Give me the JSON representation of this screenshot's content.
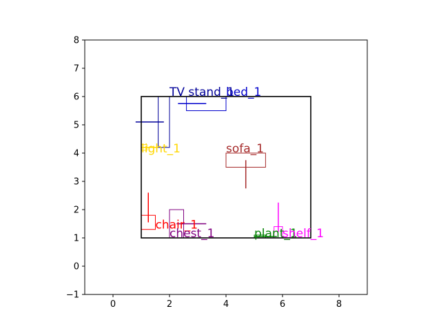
{
  "chart_data": {
    "type": "scatter",
    "title": "",
    "xlabel": "",
    "ylabel": "",
    "xlim": [
      -1,
      9
    ],
    "ylim": [
      -1,
      8
    ],
    "xticks": [
      0,
      2,
      4,
      6,
      8
    ],
    "yticks": [
      -1,
      0,
      1,
      2,
      3,
      4,
      5,
      6,
      7,
      8
    ],
    "grid": false,
    "room": {
      "x": [
        1,
        7
      ],
      "y": [
        1,
        6
      ],
      "color": "#000000"
    },
    "objects": [
      {
        "label": "bed_1",
        "color": "#0000cc",
        "rect": {
          "x0": 2.6,
          "y0": 5.5,
          "x1": 4.0,
          "y1": 6.0
        },
        "segment": {
          "x0": 2.3,
          "y0": 5.75,
          "x1": 3.3,
          "y1": 5.75
        },
        "label_pos": [
          4.0,
          6.0
        ]
      },
      {
        "label": "TV stand_1",
        "color": "#000099",
        "rect": {
          "x0": 1.6,
          "y0": 4.2,
          "x1": 2.0,
          "y1": 6.0
        },
        "segment": {
          "x0": 0.8,
          "y0": 5.1,
          "x1": 1.8,
          "y1": 5.1
        },
        "label_pos": [
          2.0,
          6.0
        ]
      },
      {
        "label": "light_1",
        "color": "#ffd700",
        "rect": {
          "x0": 1.0,
          "y0": 4.1,
          "x1": 1.2,
          "y1": 4.3
        },
        "segment": {
          "x0": 1.0,
          "y0": 4.2,
          "x1": 1.6,
          "y1": 4.2
        },
        "label_pos": [
          1.0,
          4.0
        ]
      },
      {
        "label": "sofa_1",
        "color": "#a52a2a",
        "rect": {
          "x0": 4.0,
          "y0": 3.5,
          "x1": 5.4,
          "y1": 4.0
        },
        "segment": {
          "x0": 4.7,
          "y0": 2.75,
          "x1": 4.7,
          "y1": 3.75
        },
        "label_pos": [
          4.0,
          4.0
        ]
      },
      {
        "label": "chair_1",
        "color": "#ff0000",
        "rect": {
          "x0": 1.0,
          "y0": 1.3,
          "x1": 1.5,
          "y1": 1.8
        },
        "segment": {
          "x0": 1.25,
          "y0": 1.55,
          "x1": 1.25,
          "y1": 2.6
        },
        "label_pos": [
          1.5,
          1.3
        ]
      },
      {
        "label": "chest_1",
        "color": "#800080",
        "rect": {
          "x0": 2.0,
          "y0": 1.0,
          "x1": 2.5,
          "y1": 2.0
        },
        "segment": {
          "x0": 2.25,
          "y0": 1.5,
          "x1": 3.3,
          "y1": 1.5
        },
        "label_pos": [
          2.0,
          1.0
        ]
      },
      {
        "label": "plant_1",
        "color": "#008000",
        "rect": {
          "x0": 5.0,
          "y0": 1.0,
          "x1": 5.4,
          "y1": 1.1
        },
        "segment": {
          "x0": 5.0,
          "y0": 1.05,
          "x1": 5.8,
          "y1": 1.05
        },
        "label_pos": [
          5.0,
          1.0
        ]
      },
      {
        "label": "shelf_1",
        "color": "#ff00ff",
        "rect": {
          "x0": 5.7,
          "y0": 1.0,
          "x1": 6.0,
          "y1": 1.4
        },
        "segment": {
          "x0": 5.85,
          "y0": 1.2,
          "x1": 5.85,
          "y1": 2.25
        },
        "label_pos": [
          6.0,
          1.0
        ]
      }
    ]
  }
}
